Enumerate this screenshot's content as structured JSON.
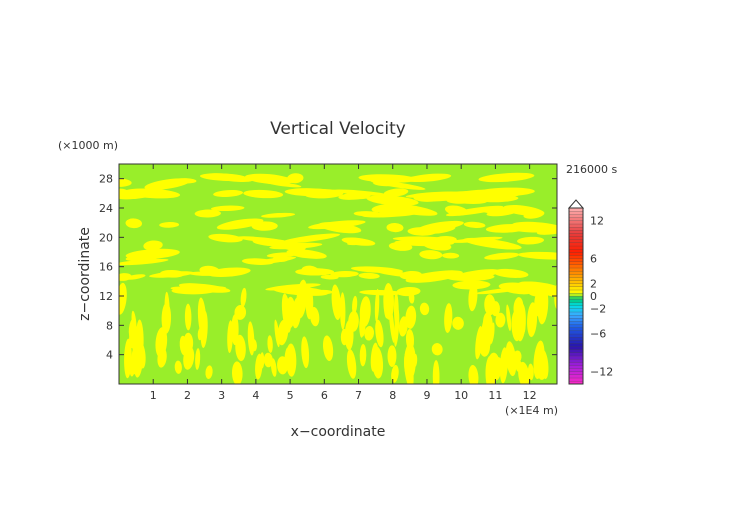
{
  "chart_data": {
    "type": "heatmap",
    "title": "Vertical Velocity",
    "xlabel": "x−coordinate",
    "ylabel": "z−coordinate",
    "x_unit": "(×1E4 m)",
    "y_unit": "(×1000 m)",
    "time_label": "216000 s",
    "xlim": [
      0,
      12.8
    ],
    "ylim": [
      0,
      30
    ],
    "xticks": [
      1,
      2,
      3,
      4,
      5,
      6,
      7,
      8,
      9,
      10,
      11,
      12
    ],
    "yticks": [
      4,
      8,
      12,
      16,
      20,
      24,
      28
    ],
    "colorbar": {
      "labels": [
        "12",
        "6",
        "2",
        "0",
        "−2",
        "−6",
        "−12"
      ],
      "label_values": [
        12,
        6,
        2,
        0,
        -2,
        -6,
        -12
      ],
      "range": [
        -14,
        14
      ],
      "extend": "max"
    },
    "field_colors": [
      "#ffff00",
      "#99ee2a"
    ],
    "grid": false
  }
}
